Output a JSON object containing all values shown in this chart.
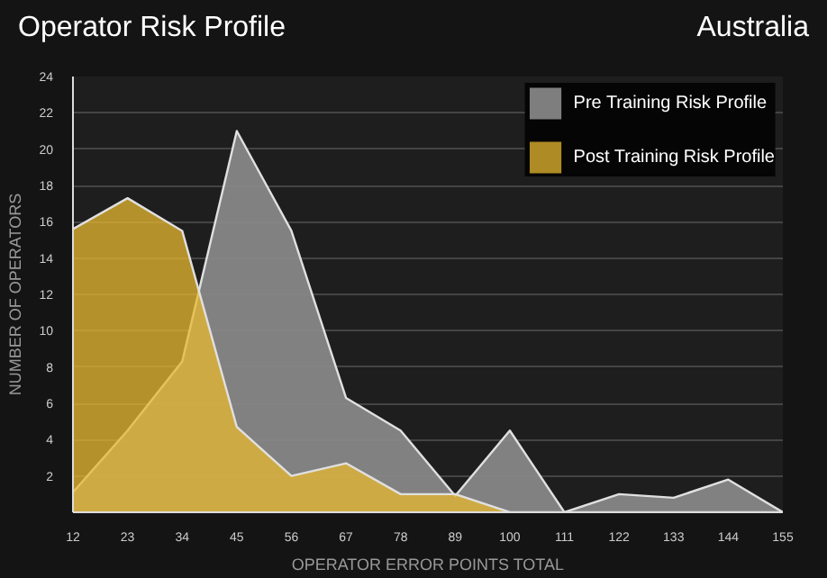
{
  "chart_data": {
    "type": "area",
    "title": "Operator Risk Profile",
    "subtitle": "Australia",
    "xlabel": "OPERATOR ERROR POINTS TOTAL",
    "ylabel": "NUMBER OF OPERATORS",
    "x": [
      12,
      23,
      34,
      45,
      56,
      67,
      78,
      89,
      100,
      111,
      122,
      133,
      144,
      155
    ],
    "series": [
      {
        "name": "Pre Training Risk Profile",
        "color": "#8c8c8c",
        "values": [
          1.1,
          4.5,
          8.3,
          21,
          15.5,
          6.3,
          4.5,
          0.9,
          4.5,
          0,
          1,
          0.8,
          1.8,
          0
        ]
      },
      {
        "name": "Post Training Risk Profile",
        "color": "#e8b830",
        "values": [
          15.6,
          17.3,
          15.5,
          4.7,
          2,
          2.7,
          1,
          1,
          0,
          0,
          0,
          0,
          0,
          0
        ]
      }
    ],
    "xlim": [
      12,
      155
    ],
    "ylim": [
      0,
      24
    ],
    "xticks": [
      12,
      23,
      34,
      45,
      56,
      67,
      78,
      89,
      100,
      111,
      122,
      133,
      144,
      155
    ],
    "yticks": [
      {
        "value": 0,
        "label": null
      },
      2,
      4,
      6,
      8,
      10,
      12,
      14,
      16,
      18,
      20,
      22,
      24
    ],
    "grid": "y",
    "legend": "top right"
  }
}
